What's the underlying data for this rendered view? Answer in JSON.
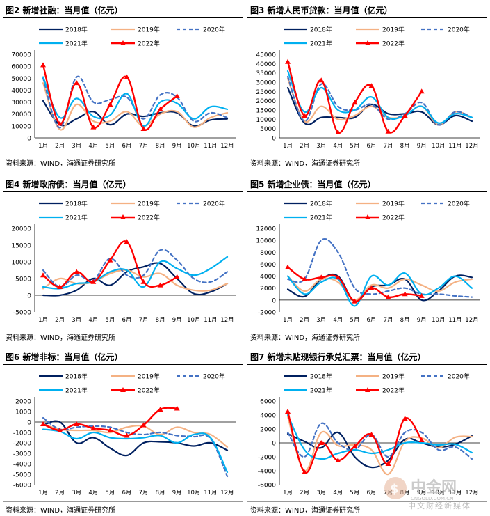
{
  "source": "资料来源：WIND，海通证券研究所",
  "months": [
    "1月",
    "2月",
    "3月",
    "4月",
    "5月",
    "6月",
    "7月",
    "8月",
    "9月",
    "10月",
    "11月",
    "12月"
  ],
  "legend": [
    "2018年",
    "2019年",
    "2020年",
    "2021年",
    "2022年"
  ],
  "colors": {
    "2018": "#002060",
    "2019": "#F4B183",
    "2020": "#4472C4",
    "2021": "#00B0F0",
    "2022": "#FF0000"
  },
  "watermark": {
    "brand": "中金网",
    "domain": "CNGOLD.COM.CN",
    "tagline": "中文财经新媒体"
  },
  "chart_data": [
    {
      "id": "fig2",
      "title": "图2  新增社融：当月值（亿元）",
      "type": "line",
      "ylim": [
        0,
        70000
      ],
      "yticks": [
        0,
        10000,
        20000,
        30000,
        40000,
        50000,
        60000,
        70000
      ],
      "series": [
        {
          "name": "2018年",
          "values": [
            31000,
            11000,
            16000,
            22000,
            11000,
            20000,
            18000,
            21000,
            21000,
            10000,
            15000,
            16000
          ]
        },
        {
          "name": "2019年",
          "values": [
            46000,
            7000,
            28000,
            14000,
            14000,
            22000,
            10000,
            20000,
            22000,
            9000,
            17000,
            21000
          ]
        },
        {
          "name": "2020年",
          "values": [
            50000,
            8500,
            51000,
            30000,
            32000,
            34000,
            16000,
            36000,
            34000,
            14000,
            21000,
            17000
          ]
        },
        {
          "name": "2021年",
          "values": [
            51000,
            17000,
            33000,
            18000,
            19000,
            37000,
            10000,
            30000,
            29000,
            16000,
            26000,
            24000
          ]
        },
        {
          "name": "2022年",
          "values": [
            61000,
            12000,
            46000,
            9000,
            28000,
            51000,
            7600,
            24000,
            35000
          ]
        }
      ]
    },
    {
      "id": "fig3",
      "title": "图3  新增人民币贷款：当月值（亿元）",
      "type": "line",
      "ylim": [
        0,
        45000
      ],
      "yticks": [
        0,
        5000,
        10000,
        15000,
        20000,
        25000,
        30000,
        35000,
        40000,
        45000
      ],
      "series": [
        {
          "name": "2018年",
          "values": [
            27000,
            8000,
            11000,
            11000,
            11000,
            18000,
            13000,
            13000,
            14000,
            7000,
            12000,
            9000
          ]
        },
        {
          "name": "2019年",
          "values": [
            32000,
            9000,
            17000,
            10000,
            12000,
            17000,
            11000,
            12000,
            17000,
            7000,
            14000,
            11000
          ]
        },
        {
          "name": "2020年",
          "values": [
            33000,
            9000,
            29000,
            17000,
            15000,
            18000,
            10000,
            13000,
            19000,
            7000,
            14000,
            11000
          ]
        },
        {
          "name": "2021年",
          "values": [
            36000,
            14000,
            27000,
            15000,
            15000,
            22000,
            11000,
            12000,
            17000,
            8000,
            13000,
            11000
          ]
        },
        {
          "name": "2022年",
          "values": [
            41000,
            12000,
            31000,
            3000,
            19000,
            28000,
            3500,
            12000,
            25000
          ]
        }
      ]
    },
    {
      "id": "fig4",
      "title": "图4  新增政府债：当月值（亿元）",
      "type": "line",
      "ylim": [
        -5000,
        20000
      ],
      "yticks": [
        -5000,
        0,
        5000,
        10000,
        15000,
        20000
      ],
      "series": [
        {
          "name": "2018年",
          "values": [
            0,
            0,
            1500,
            5000,
            3000,
            7000,
            8500,
            9500,
            5000,
            500,
            1000,
            3500
          ]
        },
        {
          "name": "2019年",
          "values": [
            2000,
            5000,
            3500,
            4000,
            6500,
            7500,
            5500,
            6500,
            3000,
            1500,
            1500,
            3500
          ]
        },
        {
          "name": "2020年",
          "values": [
            7500,
            2500,
            6000,
            4500,
            11000,
            6000,
            6000,
            13500,
            10500,
            5000,
            4000,
            7000
          ]
        },
        {
          "name": "2021年",
          "values": [
            2500,
            2000,
            3500,
            4000,
            7000,
            7500,
            2500,
            10000,
            8000,
            6000,
            8000,
            11500
          ]
        },
        {
          "name": "2022年",
          "values": [
            6000,
            2500,
            7000,
            4000,
            10500,
            16000,
            4000,
            3000,
            5500
          ]
        }
      ]
    },
    {
      "id": "fig5",
      "title": "图5  新增企业债：当月值（亿元）",
      "type": "line",
      "ylim": [
        -2000,
        12000
      ],
      "yticks": [
        -2000,
        0,
        2000,
        4000,
        6000,
        8000,
        10000,
        12000
      ],
      "series": [
        {
          "name": "2018年",
          "values": [
            1800,
            600,
            3500,
            4000,
            -200,
            2200,
            2500,
            3500,
            0,
            1500,
            4000,
            3800
          ]
        },
        {
          "name": "2019年",
          "values": [
            4000,
            1500,
            3500,
            3000,
            0,
            2500,
            2000,
            3500,
            2500,
            1500,
            3000,
            3500
          ]
        },
        {
          "name": "2020年",
          "values": [
            3500,
            3500,
            10000,
            8000,
            2000,
            1000,
            1500,
            2000,
            1000,
            1000,
            700,
            500
          ]
        },
        {
          "name": "2021年",
          "values": [
            4000,
            1000,
            3000,
            3500,
            -1000,
            4000,
            2500,
            4500,
            1000,
            2000,
            4000,
            2000
          ]
        },
        {
          "name": "2022年",
          "values": [
            5500,
            3500,
            3800,
            3800,
            -200,
            2000,
            500,
            1000,
            700
          ]
        }
      ]
    },
    {
      "id": "fig6",
      "title": "图6  新增非标：当月值（亿元）",
      "type": "line",
      "ylim": [
        -6000,
        2000
      ],
      "yticks": [
        -6000,
        -5000,
        -4000,
        -3000,
        -2000,
        -1000,
        0,
        1000,
        2000
      ],
      "series": [
        {
          "name": "2018年",
          "values": [
            -300,
            0,
            -2000,
            -1500,
            -2500,
            -3200,
            -2000,
            -1900,
            -2000,
            -2300,
            -2000,
            -2700
          ]
        },
        {
          "name": "2019年",
          "values": [
            -200,
            -700,
            -800,
            -800,
            -1000,
            -500,
            -400,
            -1200,
            -500,
            -1000,
            -1200,
            -2400
          ]
        },
        {
          "name": "2020年",
          "values": [
            400,
            -700,
            -500,
            -400,
            -500,
            -1000,
            -1200,
            -1000,
            -1300,
            -1400,
            -1600,
            -5200
          ]
        },
        {
          "name": "2021年",
          "values": [
            -700,
            -900,
            -1600,
            -1000,
            -1500,
            -1600,
            -1500,
            -1300,
            -2000,
            -1200,
            -1500,
            -4800
          ]
        },
        {
          "name": "2022年",
          "values": [
            -200,
            -800,
            -200,
            -600,
            -800,
            -1300,
            -300,
            1200,
            1300
          ]
        }
      ]
    },
    {
      "id": "fig7",
      "title": "图7  新增未贴现银行承兑汇票：当月值（亿元）",
      "type": "line",
      "ylim": [
        -6000,
        6000
      ],
      "yticks": [
        -6000,
        -4000,
        -2000,
        0,
        2000,
        4000,
        6000
      ],
      "series": [
        {
          "name": "2018年",
          "values": [
            1300,
            200,
            -700,
            1500,
            -2000,
            -3500,
            -2500,
            500,
            0,
            -600,
            -200,
            1000
          ]
        },
        {
          "name": "2019年",
          "values": [
            3800,
            -4000,
            1500,
            -400,
            -300,
            -1000,
            -4500,
            200,
            700,
            -700,
            800,
            900
          ]
        },
        {
          "name": "2020年",
          "values": [
            1500,
            -2000,
            2800,
            0,
            -1000,
            1200,
            -2000,
            1500,
            1500,
            -1000,
            -600,
            -2300
          ]
        },
        {
          "name": "2021年",
          "values": [
            4000,
            -1000,
            -2300,
            -1500,
            -1000,
            -1500,
            -1000,
            0,
            0,
            -300,
            -200,
            -1400
          ]
        },
        {
          "name": "2022年",
          "values": [
            4500,
            -4200,
            0,
            -2500,
            -500,
            1200,
            -3000,
            3500,
            400
          ]
        }
      ]
    }
  ]
}
